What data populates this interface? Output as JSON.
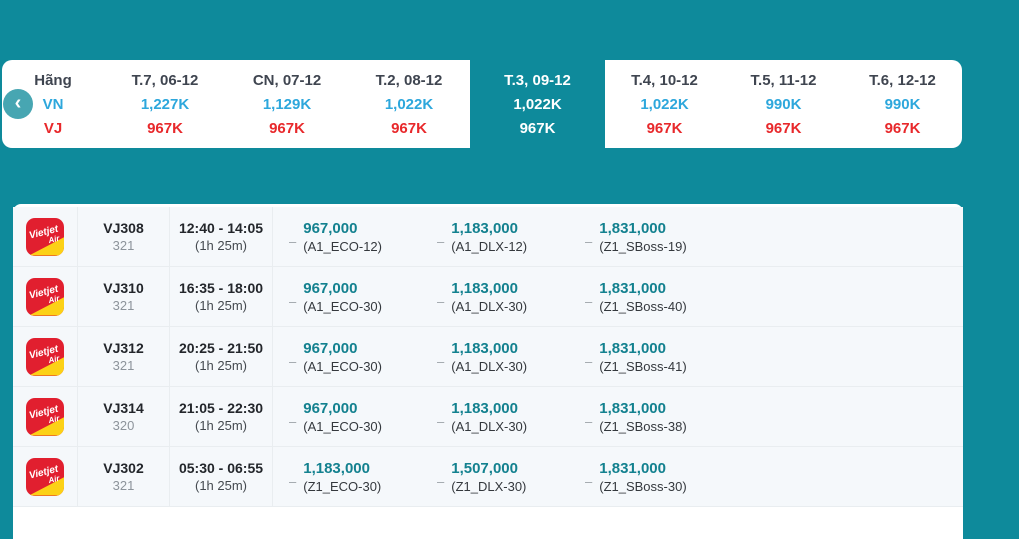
{
  "colors": {
    "background": "#0e8a9b",
    "vn_blue": "#2da7dc",
    "vj_red": "#e8282b",
    "price_teal": "#13818f",
    "logo_red": "#e11f2f",
    "logo_yellow": "#fcd116",
    "back_button": "#47a6b2",
    "row_tint": "#f5f8fb"
  },
  "date_strip": {
    "back_icon": "‹",
    "header": {
      "label": "Hãng",
      "vn": "VN",
      "vj": "VJ"
    },
    "days": [
      {
        "label": "T.7, 06-12",
        "vn": "1,227K",
        "vj": "967K",
        "selected": false
      },
      {
        "label": "CN, 07-12",
        "vn": "1,129K",
        "vj": "967K",
        "selected": false
      },
      {
        "label": "T.2, 08-12",
        "vn": "1,022K",
        "vj": "967K",
        "selected": false
      },
      {
        "label": "T.3, 09-12",
        "vn": "1,022K",
        "vj": "967K",
        "selected": true
      },
      {
        "label": "T.4, 10-12",
        "vn": "1,022K",
        "vj": "967K",
        "selected": false
      },
      {
        "label": "T.5, 11-12",
        "vn": "990K",
        "vj": "967K",
        "selected": false
      },
      {
        "label": "T.6, 12-12",
        "vn": "990K",
        "vj": "967K",
        "selected": false
      }
    ]
  },
  "airline_logo": {
    "line1": "Vietjet",
    "line2": "Air"
  },
  "fare_dash": "–",
  "flights": [
    {
      "flight_no": "VJ308",
      "aircraft": "321",
      "time": "12:40 - 14:05",
      "duration": "(1h 25m)",
      "fares": [
        {
          "price": "967,000",
          "fare_class": "(A1_ECO-12)"
        },
        {
          "price": "1,183,000",
          "fare_class": "(A1_DLX-12)"
        },
        {
          "price": "1,831,000",
          "fare_class": "(Z1_SBoss-19)"
        }
      ]
    },
    {
      "flight_no": "VJ310",
      "aircraft": "321",
      "time": "16:35 - 18:00",
      "duration": "(1h 25m)",
      "fares": [
        {
          "price": "967,000",
          "fare_class": "(A1_ECO-30)"
        },
        {
          "price": "1,183,000",
          "fare_class": "(A1_DLX-30)"
        },
        {
          "price": "1,831,000",
          "fare_class": "(Z1_SBoss-40)"
        }
      ]
    },
    {
      "flight_no": "VJ312",
      "aircraft": "321",
      "time": "20:25 - 21:50",
      "duration": "(1h 25m)",
      "fares": [
        {
          "price": "967,000",
          "fare_class": "(A1_ECO-30)"
        },
        {
          "price": "1,183,000",
          "fare_class": "(A1_DLX-30)"
        },
        {
          "price": "1,831,000",
          "fare_class": "(Z1_SBoss-41)"
        }
      ]
    },
    {
      "flight_no": "VJ314",
      "aircraft": "320",
      "time": "21:05 - 22:30",
      "duration": "(1h 25m)",
      "fares": [
        {
          "price": "967,000",
          "fare_class": "(A1_ECO-30)"
        },
        {
          "price": "1,183,000",
          "fare_class": "(A1_DLX-30)"
        },
        {
          "price": "1,831,000",
          "fare_class": "(Z1_SBoss-38)"
        }
      ]
    },
    {
      "flight_no": "VJ302",
      "aircraft": "321",
      "time": "05:30 - 06:55",
      "duration": "(1h 25m)",
      "fares": [
        {
          "price": "1,183,000",
          "fare_class": "(Z1_ECO-30)"
        },
        {
          "price": "1,507,000",
          "fare_class": "(Z1_DLX-30)"
        },
        {
          "price": "1,831,000",
          "fare_class": "(Z1_SBoss-30)"
        }
      ]
    }
  ]
}
